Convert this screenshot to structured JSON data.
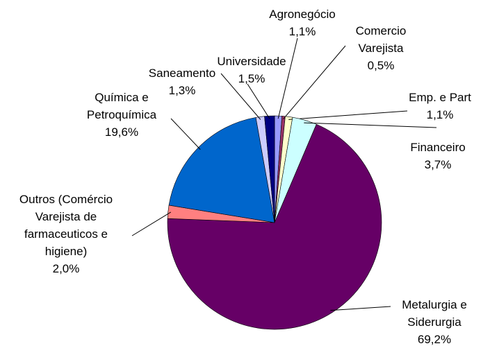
{
  "chart_data": {
    "type": "pie",
    "categories": [
      "Agronegócio",
      "Comercio Varejista",
      "Emp. e Part",
      "Financeiro",
      "Metalurgia e Siderurgia",
      "Outros (Comércio Varejista de farmaceuticos e higiene)",
      "Química e Petroquímica",
      "Saneamento",
      "Universidade"
    ],
    "values": [
      1.1,
      0.5,
      1.1,
      3.7,
      69.2,
      2.0,
      19.6,
      1.3,
      1.5
    ],
    "value_labels": [
      "1,1%",
      "0,5%",
      "1,1%",
      "3,7%",
      "69,2%",
      "2,0%",
      "19,6%",
      "1,3%",
      "1,5%"
    ],
    "colors": [
      "#9999ff",
      "#993366",
      "#ffffcc",
      "#ccffff",
      "#660066",
      "#ff8080",
      "#0066cc",
      "#ccccff",
      "#000080"
    ]
  }
}
